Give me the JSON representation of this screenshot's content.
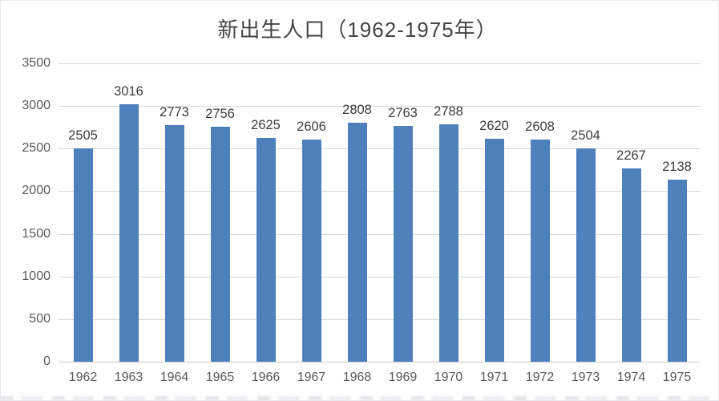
{
  "chart_data": {
    "type": "bar",
    "title": "新出生人口（1962-1975年）",
    "categories": [
      "1962",
      "1963",
      "1964",
      "1965",
      "1966",
      "1967",
      "1968",
      "1969",
      "1970",
      "1971",
      "1972",
      "1973",
      "1974",
      "1975"
    ],
    "values": [
      2505,
      3016,
      2773,
      2756,
      2625,
      2606,
      2808,
      2763,
      2788,
      2620,
      2608,
      2504,
      2267,
      2138
    ],
    "xlabel": "",
    "ylabel": "",
    "ylim": [
      0,
      3500
    ],
    "yticks": [
      0,
      500,
      1000,
      1500,
      2000,
      2500,
      3000,
      3500
    ],
    "grid": "horizontal",
    "legend_position": "none",
    "data_labels_shown": true,
    "colors": {
      "bar_fill": "#4e80bc",
      "gridline": "#d8d8d8",
      "baseline": "#cccccc",
      "axis_text": "#595959",
      "value_text": "#3d3d3d",
      "title_text": "#444444",
      "background": "#ffffff"
    }
  }
}
